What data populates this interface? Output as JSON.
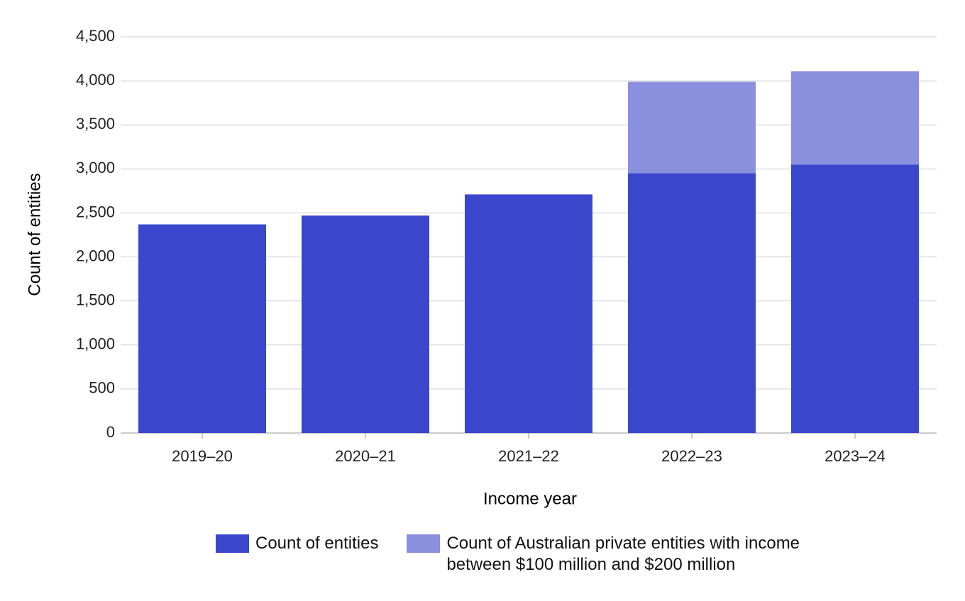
{
  "chart_data": {
    "type": "stacked-bar",
    "x_label": "Income year",
    "y_label": "Count of entities",
    "categories": [
      "2019–20",
      "2020–21",
      "2021–22",
      "2022–23",
      "2023–24"
    ],
    "series": [
      {
        "name": "Count of entities",
        "color": "#3a46cc",
        "values": [
          2370,
          2470,
          2710,
          2950,
          3050
        ]
      },
      {
        "name": "Count of Australian private entities with income between $100 million and $200 million",
        "color": "#8a90de",
        "values": [
          null,
          null,
          null,
          1040,
          1060
        ]
      }
    ],
    "ylim": [
      0,
      4500
    ],
    "yticks": [
      0,
      500,
      {
        "value": 1000,
        "label": "1,000"
      },
      {
        "value": 1500,
        "label": "1,500"
      },
      {
        "value": 2000,
        "label": "2,000"
      },
      {
        "value": 2500,
        "label": "2,500"
      },
      {
        "value": 3000,
        "label": "3,000"
      },
      {
        "value": 3500,
        "label": "3,500"
      },
      {
        "value": 4000,
        "label": "4,000"
      },
      {
        "value": 4500,
        "label": "4,500"
      }
    ],
    "grid": true
  }
}
